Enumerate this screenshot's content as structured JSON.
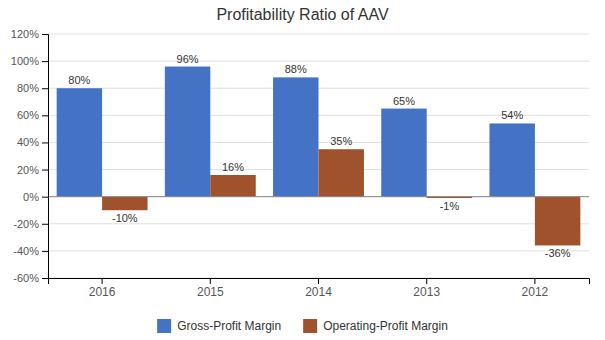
{
  "chart_data": {
    "type": "bar",
    "title": "Profitability Ratio of AAV",
    "categories": [
      "2016",
      "2015",
      "2014",
      "2013",
      "2012"
    ],
    "series": [
      {
        "name": "Gross-Profit Margin",
        "color": "#4472C4",
        "values": [
          80,
          96,
          88,
          65,
          54
        ],
        "value_labels": [
          "80%",
          "96%",
          "88%",
          "65%",
          "54%"
        ]
      },
      {
        "name": "Operating-Profit Margin",
        "color": "#A0522D",
        "values": [
          -10,
          16,
          35,
          -1,
          -36
        ],
        "value_labels": [
          "-10%",
          "16%",
          "35%",
          "-1%",
          "-36%"
        ]
      }
    ],
    "ylim": [
      -60,
      120
    ],
    "yticks": [
      {
        "value": -60,
        "label": "-60%"
      },
      {
        "value": -40,
        "label": "-40%"
      },
      {
        "value": -20,
        "label": "-20%"
      },
      {
        "value": 0,
        "label": "0%"
      },
      {
        "value": 20,
        "label": "20%"
      },
      {
        "value": 40,
        "label": "40%"
      },
      {
        "value": 60,
        "label": "60%"
      },
      {
        "value": 80,
        "label": "80%"
      },
      {
        "value": 100,
        "label": "100%"
      },
      {
        "value": 120,
        "label": "120%"
      }
    ],
    "grid": true,
    "legend": "bottom",
    "data_labels": true
  }
}
